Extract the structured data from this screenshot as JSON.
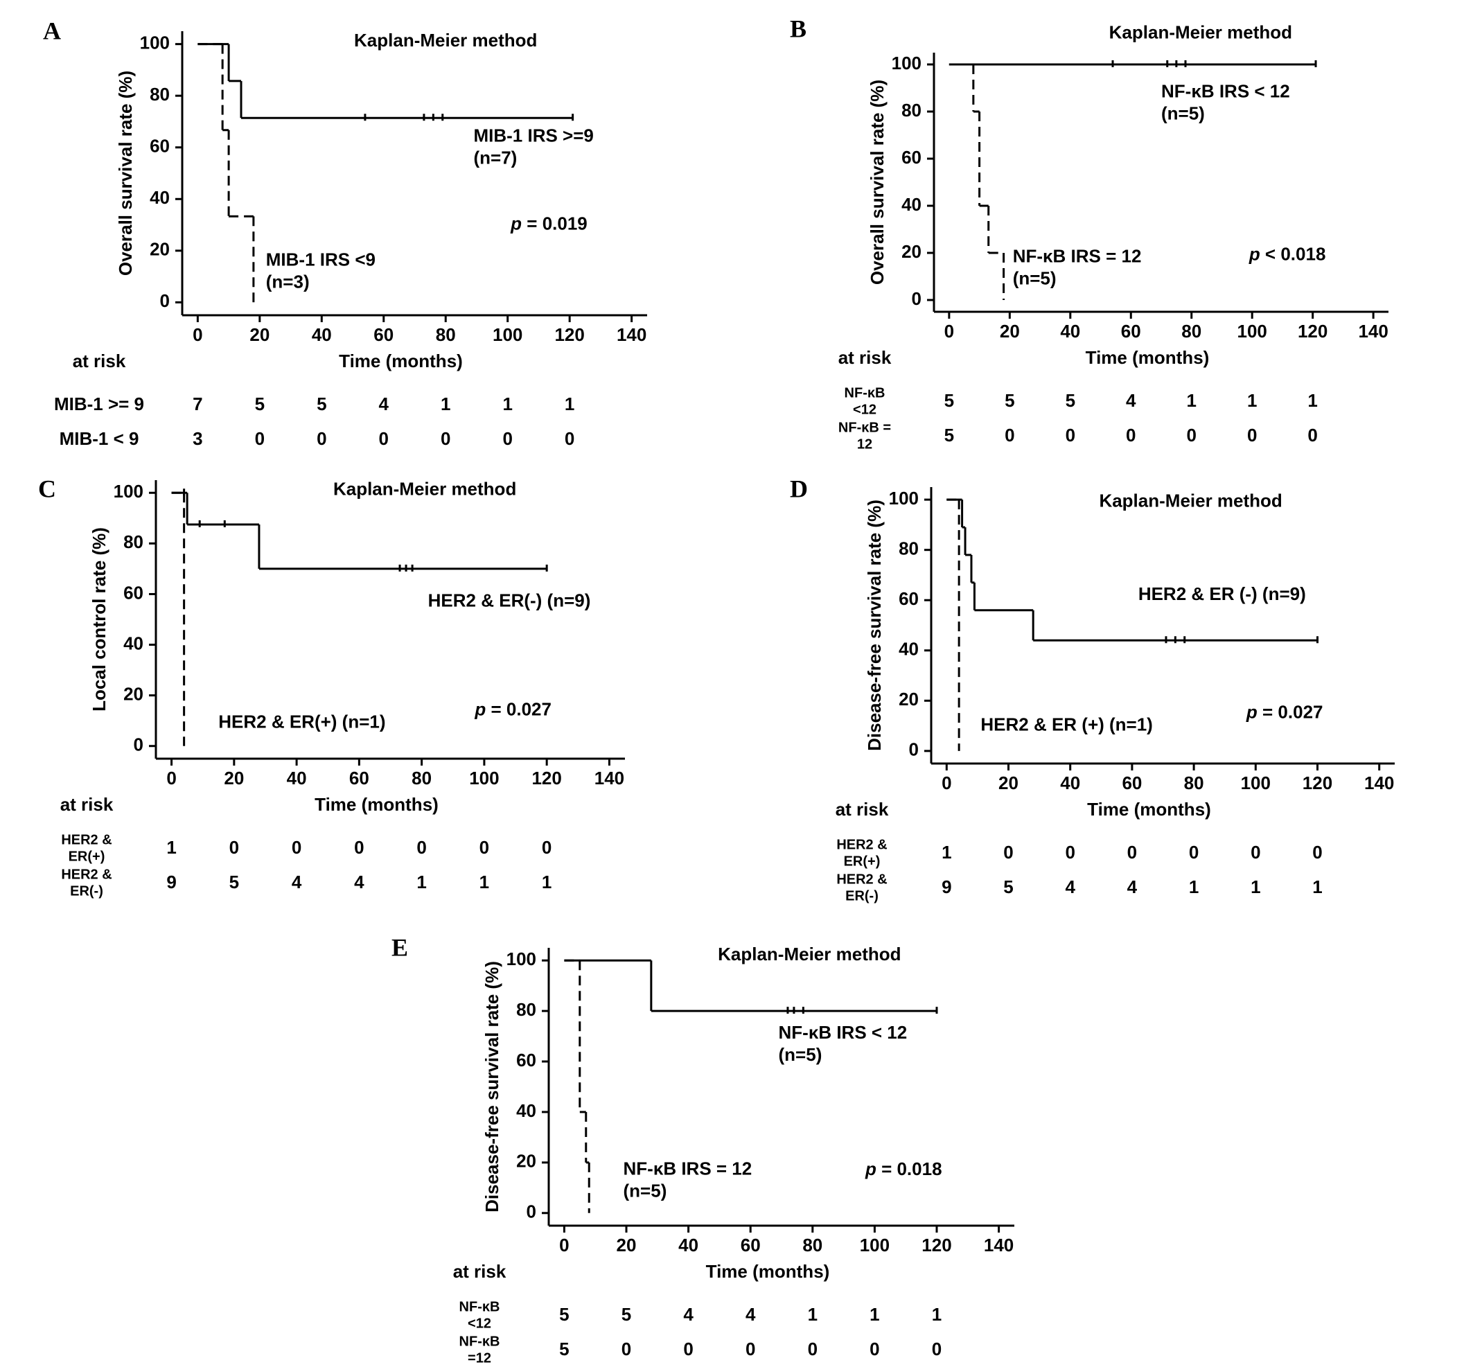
{
  "chart_data": [
    {
      "type": "km",
      "panel": "A",
      "title": "Kaplan-Meier method",
      "xlabel": "Time (months)",
      "ylabel": "Overall survival rate (%)",
      "xlim": [
        -5,
        145
      ],
      "ylim": [
        -5,
        105
      ],
      "xticks": [
        0,
        20,
        40,
        60,
        80,
        100,
        120,
        140
      ],
      "yticks": [
        0,
        20,
        40,
        60,
        80,
        100
      ],
      "series": [
        {
          "label": [
            "MIB-1 IRS >=9",
            "(n=7)"
          ],
          "color": "#000000",
          "dashed": false,
          "x": [
            0,
            10,
            14,
            121
          ],
          "values": [
            100,
            85.7,
            71.4,
            71.4
          ],
          "censored": {
            "x": [
              54,
              73,
              76,
              79,
              121
            ],
            "values": [
              71.4,
              71.4,
              71.4,
              71.4,
              71.4
            ]
          }
        },
        {
          "label": [
            "MIB-1 IRS <9",
            "(n=3)"
          ],
          "color": "#000000",
          "dashed": true,
          "x": [
            0,
            8,
            10,
            18
          ],
          "values": [
            100,
            66.7,
            33.3,
            0
          ]
        }
      ],
      "p_value": [
        "p",
        " = 0.019"
      ],
      "risk_title": "at risk",
      "risk_rows": [
        {
          "label": [
            "MIB-1 >= 9"
          ],
          "counts": [
            7,
            5,
            5,
            4,
            1,
            1,
            1
          ]
        },
        {
          "label": [
            "MIB-1 < 9"
          ],
          "counts": [
            3,
            0,
            0,
            0,
            0,
            0,
            0
          ]
        }
      ]
    },
    {
      "type": "km",
      "panel": "B",
      "title": "Kaplan-Meier method",
      "xlabel": "Time (months)",
      "ylabel": "Overall survival rate (%)",
      "xlim": [
        -5,
        145
      ],
      "ylim": [
        -5,
        105
      ],
      "xticks": [
        0,
        20,
        40,
        60,
        80,
        100,
        120,
        140
      ],
      "yticks": [
        0,
        20,
        40,
        60,
        80,
        100
      ],
      "series": [
        {
          "label": [
            "NF-κB IRS < 12",
            "(n=5)"
          ],
          "color": "#000000",
          "dashed": false,
          "x": [
            0,
            121
          ],
          "values": [
            100,
            100
          ],
          "censored": {
            "x": [
              54,
              72,
              75,
              78,
              121
            ],
            "values": [
              100,
              100,
              100,
              100,
              100
            ]
          }
        },
        {
          "label": [
            "NF-κB IRS = 12",
            "(n=5)"
          ],
          "color": "#000000",
          "dashed": true,
          "x": [
            0,
            8,
            10,
            13,
            18
          ],
          "values": [
            100,
            80,
            40,
            20,
            0
          ]
        }
      ],
      "p_value": [
        "p",
        " < 0.018"
      ],
      "risk_title": "at risk",
      "risk_rows": [
        {
          "label": [
            "NF-κB",
            "<12"
          ],
          "counts": [
            5,
            5,
            5,
            4,
            1,
            1,
            1
          ]
        },
        {
          "label": [
            "NF-κB =",
            "12"
          ],
          "counts": [
            5,
            0,
            0,
            0,
            0,
            0,
            0
          ]
        }
      ]
    },
    {
      "type": "km",
      "panel": "C",
      "title": "Kaplan-Meier method",
      "xlabel": "Time (months)",
      "ylabel": "Local control rate (%)",
      "xlim": [
        -5,
        145
      ],
      "ylim": [
        -5,
        105
      ],
      "xticks": [
        0,
        20,
        40,
        60,
        80,
        100,
        120,
        140
      ],
      "yticks": [
        0,
        20,
        40,
        60,
        80,
        100
      ],
      "series": [
        {
          "label": [
            "HER2 & ER(-) (n=9)"
          ],
          "color": "#000000",
          "dashed": false,
          "x": [
            0,
            5,
            28,
            120
          ],
          "values": [
            100,
            87.5,
            70,
            70
          ],
          "censored": {
            "x": [
              4,
              9,
              17,
              73,
              75,
              77,
              120
            ],
            "values": [
              100,
              87.5,
              87.5,
              70,
              70,
              70,
              70
            ]
          }
        },
        {
          "label": [
            "HER2 & ER(+) (n=1)"
          ],
          "color": "#000000",
          "dashed": true,
          "x": [
            0,
            4
          ],
          "values": [
            100,
            0
          ]
        }
      ],
      "p_value": [
        "p",
        " = 0.027"
      ],
      "risk_title": "at risk",
      "risk_rows": [
        {
          "label": [
            "HER2 &",
            "ER(+)"
          ],
          "counts": [
            1,
            0,
            0,
            0,
            0,
            0,
            0
          ]
        },
        {
          "label": [
            "HER2 &",
            "ER(-)"
          ],
          "counts": [
            9,
            5,
            4,
            4,
            1,
            1,
            1
          ]
        }
      ]
    },
    {
      "type": "km",
      "panel": "D",
      "title": "Kaplan-Meier method",
      "xlabel": "Time (months)",
      "ylabel": "Disease-free survival rate (%)",
      "xlim": [
        -5,
        145
      ],
      "ylim": [
        -5,
        105
      ],
      "xticks": [
        0,
        20,
        40,
        60,
        80,
        100,
        120,
        140
      ],
      "yticks": [
        0,
        20,
        40,
        60,
        80,
        100
      ],
      "series": [
        {
          "label": [
            "HER2 & ER (-) (n=9)"
          ],
          "color": "#000000",
          "dashed": false,
          "x": [
            0,
            5,
            6,
            8,
            9,
            28,
            120
          ],
          "values": [
            100,
            89,
            78,
            67,
            56,
            44,
            44
          ],
          "censored": {
            "x": [
              71,
              74,
              77,
              120
            ],
            "values": [
              44,
              44,
              44,
              44
            ]
          }
        },
        {
          "label": [
            "HER2 & ER (+) (n=1)"
          ],
          "color": "#000000",
          "dashed": true,
          "x": [
            0,
            4
          ],
          "values": [
            100,
            0
          ]
        }
      ],
      "p_value": [
        "p",
        " = 0.027"
      ],
      "risk_title": "at risk",
      "risk_rows": [
        {
          "label": [
            "HER2 &",
            "ER(+)"
          ],
          "counts": [
            1,
            0,
            0,
            0,
            0,
            0,
            0
          ]
        },
        {
          "label": [
            "HER2 &",
            "ER(-)"
          ],
          "counts": [
            9,
            5,
            4,
            4,
            1,
            1,
            1
          ]
        }
      ]
    },
    {
      "type": "km",
      "panel": "E",
      "title": "Kaplan-Meier method",
      "xlabel": "Time (months)",
      "ylabel": "Disease-free survival rate (%)",
      "xlim": [
        -5,
        145
      ],
      "ylim": [
        -5,
        105
      ],
      "xticks": [
        0,
        20,
        40,
        60,
        80,
        100,
        120,
        140
      ],
      "yticks": [
        0,
        20,
        40,
        60,
        80,
        100
      ],
      "series": [
        {
          "label": [
            "NF-κB IRS < 12",
            "(n=5)"
          ],
          "color": "#000000",
          "dashed": false,
          "x": [
            0,
            28,
            120
          ],
          "values": [
            100,
            80,
            80
          ],
          "censored": {
            "x": [
              72,
              74,
              77,
              120
            ],
            "values": [
              80,
              80,
              80,
              80
            ]
          }
        },
        {
          "label": [
            "NF-κB IRS = 12",
            "(n=5)"
          ],
          "color": "#000000",
          "dashed": true,
          "x": [
            0,
            5,
            7,
            8
          ],
          "values": [
            100,
            40,
            20,
            0
          ]
        }
      ],
      "p_value": [
        "p",
        " = 0.018"
      ],
      "risk_title": "at risk",
      "risk_rows": [
        {
          "label": [
            "NF-κB",
            "<12"
          ],
          "counts": [
            5,
            5,
            4,
            4,
            1,
            1,
            1
          ]
        },
        {
          "label": [
            "NF-κB",
            "=12"
          ],
          "counts": [
            5,
            0,
            0,
            0,
            0,
            0,
            0
          ]
        }
      ]
    }
  ]
}
